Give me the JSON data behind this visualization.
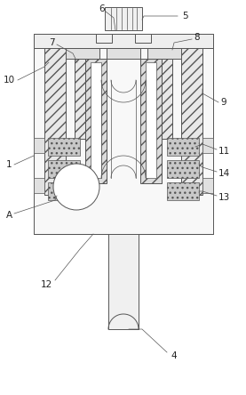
{
  "bg_color": "#ffffff",
  "line_color": "#555555",
  "label_color": "#222222",
  "fs": 7.5,
  "lw": 0.7
}
